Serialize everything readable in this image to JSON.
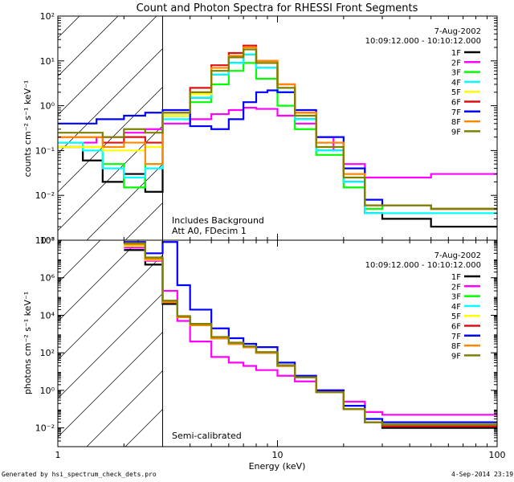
{
  "title": "Count and Photon Spectra for RHESSI Front Segments",
  "footer": {
    "generated_by": "Generated by hsi_spectrum_check_dets.pro",
    "timestamp": "4-Sep-2014 23:19"
  },
  "colors": {
    "1F": "#000000",
    "2F": "#ff00ff",
    "3F": "#00ff00",
    "4F": "#00ffff",
    "5F": "#ffff00",
    "6F": "#dd1111",
    "7F": "#0000ff",
    "8F": "#ff8800",
    "9F": "#808000"
  },
  "chart_data": [
    {
      "type": "line",
      "panel": "top",
      "title": "Count and Photon Spectra for RHESSI Front Segments",
      "xlabel": "",
      "ylabel": "counts cm⁻² s⁻¹ keV⁻¹",
      "xscale": "log",
      "yscale": "log",
      "xlim": [
        1,
        100
      ],
      "ylim": [
        0.001,
        100
      ],
      "xticks": [
        "",
        "",
        ""
      ],
      "yticks": [
        "10⁻³",
        "10⁻²",
        "10⁻¹",
        "10⁰",
        "10¹",
        "10²"
      ],
      "ytick_values": [
        0.001,
        0.01,
        0.1,
        1,
        10,
        100
      ],
      "hatched_region": [
        1,
        3
      ],
      "annotations": {
        "date": "7-Aug-2002",
        "time_range": "10:09:12.000 - 10:10:12.000",
        "note1": "Includes Background",
        "note2": "Att A0, FDecim 1"
      },
      "legend": [
        "1F",
        "2F",
        "3F",
        "4F",
        "5F",
        "6F",
        "7F",
        "8F",
        "9F"
      ],
      "legend_position": "top-right",
      "series": [
        {
          "name": "1F",
          "x": [
            1,
            1.3,
            1.6,
            2.0,
            2.5,
            3.0,
            4,
            5,
            6,
            7,
            8,
            10,
            12,
            15,
            20,
            25,
            30,
            50,
            100
          ],
          "y": [
            0.12,
            0.06,
            0.02,
            0.03,
            0.012,
            0.6,
            1.5,
            5,
            9,
            14,
            7,
            2,
            0.5,
            0.1,
            0.02,
            0.004,
            0.003,
            0.002,
            0.002
          ]
        },
        {
          "name": "2F",
          "x": [
            1,
            1.5,
            2.0,
            2.5,
            3.0,
            4,
            5,
            6,
            7,
            8,
            10,
            12,
            15,
            18,
            20,
            25,
            30,
            50,
            100
          ],
          "y": [
            0.15,
            0.2,
            0.25,
            0.3,
            0.4,
            0.5,
            0.65,
            0.8,
            0.9,
            0.85,
            0.6,
            0.4,
            0.2,
            0.1,
            0.05,
            0.025,
            0.025,
            0.03,
            0.03
          ]
        },
        {
          "name": "3F",
          "x": [
            1,
            1.3,
            1.6,
            2.0,
            2.5,
            3.0,
            4,
            5,
            6,
            7,
            8,
            10,
            12,
            15,
            20,
            25,
            30,
            50,
            100
          ],
          "y": [
            0.15,
            0.12,
            0.05,
            0.015,
            0.05,
            0.6,
            1.2,
            3,
            6,
            9,
            4,
            1,
            0.3,
            0.08,
            0.015,
            0.005,
            0.006,
            0.005,
            0.005
          ]
        },
        {
          "name": "4F",
          "x": [
            1,
            1.3,
            1.6,
            2.0,
            2.5,
            3.0,
            4,
            5,
            6,
            7,
            8,
            10,
            12,
            15,
            20,
            25,
            30,
            50,
            100
          ],
          "y": [
            0.15,
            0.1,
            0.04,
            0.025,
            0.04,
            0.5,
            1.5,
            5,
            9,
            14,
            7,
            2,
            0.5,
            0.1,
            0.02,
            0.004,
            0.004,
            0.004,
            0.004
          ]
        },
        {
          "name": "5F",
          "x": [
            1,
            1.3,
            1.6,
            2.0,
            2.5,
            3.0,
            4,
            5,
            6,
            7,
            8,
            10,
            12,
            15,
            20,
            25,
            30,
            50,
            100
          ],
          "y": [
            0.12,
            0.12,
            0.1,
            0.1,
            0.12,
            0.6,
            1.8,
            6,
            12,
            18,
            9,
            2.5,
            0.6,
            0.12,
            0.025,
            0.006,
            0.006,
            0.005,
            0.005
          ]
        },
        {
          "name": "6F",
          "x": [
            1,
            1.3,
            1.6,
            2.0,
            2.5,
            3.0,
            4,
            5,
            6,
            7,
            8,
            10,
            12,
            15,
            20,
            25,
            30,
            50,
            100
          ],
          "y": [
            0.2,
            0.2,
            0.15,
            0.2,
            0.15,
            0.7,
            2.5,
            8,
            15,
            22,
            10,
            3,
            0.7,
            0.15,
            0.03,
            0.006,
            0.006,
            0.005,
            0.005
          ]
        },
        {
          "name": "7F",
          "x": [
            1,
            1.5,
            2.0,
            2.5,
            3.0,
            4,
            5,
            6,
            7,
            8,
            9,
            10,
            12,
            15,
            20,
            25,
            30,
            50,
            100
          ],
          "y": [
            0.4,
            0.5,
            0.6,
            0.7,
            0.8,
            0.35,
            0.3,
            0.5,
            1.2,
            2.0,
            2.2,
            2.0,
            0.8,
            0.2,
            0.04,
            0.008,
            0.006,
            0.005,
            0.005
          ]
        },
        {
          "name": "8F",
          "x": [
            1,
            1.3,
            1.6,
            2.0,
            2.5,
            3.0,
            4,
            5,
            6,
            7,
            8,
            10,
            12,
            15,
            20,
            25,
            30,
            50,
            100
          ],
          "y": [
            0.2,
            0.2,
            0.12,
            0.15,
            0.05,
            0.7,
            2,
            7,
            13,
            20,
            10,
            3,
            0.7,
            0.15,
            0.03,
            0.006,
            0.006,
            0.005,
            0.005
          ]
        },
        {
          "name": "9F",
          "x": [
            1,
            1.3,
            1.6,
            2.0,
            2.5,
            3.0,
            4,
            5,
            6,
            7,
            8,
            10,
            12,
            15,
            20,
            25,
            30,
            50,
            100
          ],
          "y": [
            0.25,
            0.25,
            0.2,
            0.3,
            0.25,
            0.7,
            2,
            6,
            12,
            18,
            9,
            2.5,
            0.6,
            0.12,
            0.025,
            0.006,
            0.006,
            0.005,
            0.005
          ]
        }
      ]
    },
    {
      "type": "line",
      "panel": "bottom",
      "title": "",
      "xlabel": "Energy (keV)",
      "ylabel": "photons cm⁻² s⁻¹ keV⁻¹",
      "xscale": "log",
      "yscale": "log",
      "xlim": [
        1,
        100
      ],
      "ylim": [
        0.001,
        100000000
      ],
      "xticks": [
        "1",
        "10",
        "100"
      ],
      "xtick_values": [
        1,
        10,
        100
      ],
      "yticks": [
        "10⁻²",
        "10⁰",
        "10²",
        "10⁴",
        "10⁶",
        "10⁸"
      ],
      "ytick_values": [
        0.01,
        1,
        100,
        10000,
        1000000,
        100000000
      ],
      "hatched_region": [
        1,
        3
      ],
      "annotations": {
        "date": "7-Aug-2002",
        "time_range": "10:09:12.000 - 10:10:12.000",
        "note1": "Semi-calibrated"
      },
      "legend": [
        "1F",
        "2F",
        "3F",
        "4F",
        "5F",
        "6F",
        "7F",
        "8F",
        "9F"
      ],
      "legend_position": "top-right",
      "series": [
        {
          "name": "1F",
          "x": [
            2.0,
            2.5,
            3.0,
            3.5,
            4,
            5,
            6,
            7,
            8,
            10,
            12,
            15,
            20,
            25,
            30,
            50,
            100
          ],
          "y": [
            30000000,
            5000000,
            40000,
            8000,
            3000,
            600,
            300,
            200,
            100,
            20,
            5,
            0.8,
            0.1,
            0.02,
            0.01,
            0.01,
            0.01
          ]
        },
        {
          "name": "2F",
          "x": [
            2.0,
            2.5,
            3.0,
            3.5,
            4,
            5,
            6,
            7,
            8,
            10,
            12,
            15,
            20,
            25,
            30,
            50,
            100
          ],
          "y": [
            40000000,
            8000000,
            200000,
            5000,
            400,
            60,
            30,
            20,
            12,
            6,
            3,
            1,
            0.25,
            0.07,
            0.05,
            0.05,
            0.05
          ]
        },
        {
          "name": "3F",
          "x": [
            2.0,
            2.5,
            3.0,
            3.5,
            4,
            5,
            6,
            7,
            8,
            10,
            12,
            15,
            20,
            25,
            30,
            50,
            100
          ],
          "y": [
            60000000,
            10000000,
            50000,
            8000,
            3000,
            600,
            300,
            200,
            100,
            20,
            5,
            0.8,
            0.1,
            0.02,
            0.015,
            0.015,
            0.015
          ]
        },
        {
          "name": "4F",
          "x": [
            2.0,
            2.5,
            3.0,
            3.5,
            4,
            5,
            6,
            7,
            8,
            10,
            12,
            15,
            20,
            25,
            30,
            50,
            100
          ],
          "y": [
            50000000,
            9000000,
            50000,
            8000,
            3000,
            600,
            300,
            200,
            100,
            20,
            5,
            0.8,
            0.1,
            0.02,
            0.015,
            0.015,
            0.015
          ]
        },
        {
          "name": "5F",
          "x": [
            2.0,
            2.5,
            3.0,
            3.5,
            4,
            5,
            6,
            7,
            8,
            10,
            12,
            15,
            20,
            25,
            30,
            50,
            100
          ],
          "y": [
            50000000,
            9000000,
            50000,
            8000,
            3000,
            600,
            300,
            200,
            100,
            20,
            5,
            0.8,
            0.1,
            0.02,
            0.015,
            0.015,
            0.015
          ]
        },
        {
          "name": "6F",
          "x": [
            2.0,
            2.5,
            3.0,
            3.5,
            4,
            5,
            6,
            7,
            8,
            10,
            12,
            15,
            20,
            25,
            30,
            50,
            100
          ],
          "y": [
            60000000,
            10000000,
            50000,
            8000,
            3000,
            600,
            300,
            200,
            100,
            20,
            5,
            0.8,
            0.1,
            0.02,
            0.012,
            0.012,
            0.012
          ]
        },
        {
          "name": "7F",
          "x": [
            2.0,
            2.5,
            3.0,
            3.5,
            4,
            5,
            6,
            7,
            8,
            10,
            12,
            15,
            20,
            25,
            30,
            50,
            100
          ],
          "y": [
            80000000,
            20000000,
            80000000,
            400000,
            20000,
            2000,
            600,
            300,
            200,
            30,
            6,
            1,
            0.15,
            0.03,
            0.02,
            0.02,
            0.02
          ]
        },
        {
          "name": "8F",
          "x": [
            2.0,
            2.5,
            3.0,
            3.5,
            4,
            5,
            6,
            7,
            8,
            10,
            12,
            15,
            20,
            25,
            30,
            50,
            100
          ],
          "y": [
            60000000,
            10000000,
            50000,
            8000,
            3000,
            600,
            300,
            200,
            100,
            20,
            5,
            0.8,
            0.1,
            0.02,
            0.015,
            0.015,
            0.015
          ]
        },
        {
          "name": "9F",
          "x": [
            2.0,
            2.5,
            3.0,
            3.5,
            4,
            5,
            6,
            7,
            8,
            10,
            12,
            15,
            20,
            25,
            30,
            50,
            100
          ],
          "y": [
            70000000,
            12000000,
            60000,
            9000,
            3500,
            700,
            350,
            220,
            110,
            22,
            5,
            0.8,
            0.1,
            0.02,
            0.015,
            0.015,
            0.015
          ]
        }
      ]
    }
  ]
}
